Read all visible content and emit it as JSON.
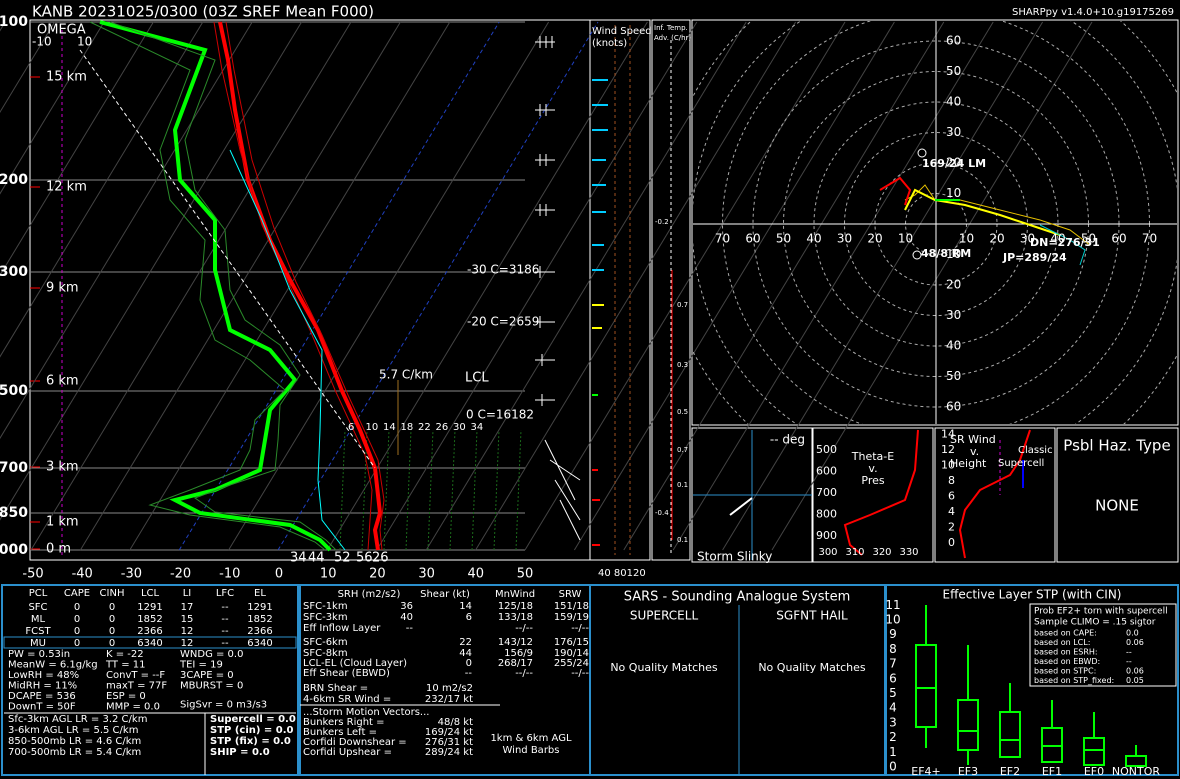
{
  "header": {
    "title": "KANB   20231025/0300  (03Z  SREF Mean  F000)",
    "version": "SHARPpy v1.4.0+10.g19175269"
  },
  "skewt": {
    "pressure_labels": [
      "100",
      "200",
      "300",
      "500",
      "700",
      "850",
      "1000"
    ],
    "height_labels": [
      "15 km",
      "12 km",
      "9 km",
      "6 km",
      "3 km",
      "1 km",
      "0 m"
    ],
    "temp_labels": [
      "-50",
      "-40",
      "-30",
      "-20",
      "-10",
      "0",
      "10",
      "20",
      "30",
      "40",
      "50"
    ],
    "omega": {
      "title": "OMEGA",
      "left": "-10",
      "right": "10"
    },
    "lapse_rate": "5.7 C/km",
    "lcl": "LCL",
    "levels": [
      "-30 C=3186",
      "-20 C=2659",
      "0 C=16182"
    ],
    "mixing_ratios": [
      "6",
      "10",
      "14",
      "18",
      "22",
      "26",
      "30",
      "34"
    ],
    "surface_labels": [
      "34",
      "44",
      "52",
      "56",
      "26"
    ]
  },
  "wind_speed": {
    "title": "Wind Speed",
    "units": "(knots)",
    "ticks": "40 80120"
  },
  "temp_adv": {
    "title": "Inf. Temp.",
    "units": "Adv. (C/hr)",
    "labels": [
      "-0.2",
      "0.7",
      "0.3",
      "0.5",
      "0.7",
      "0.1",
      "-0.4",
      "0.1"
    ]
  },
  "hodograph": {
    "rings": [
      "10",
      "20",
      "30",
      "40",
      "50",
      "60",
      "70"
    ],
    "annotations": [
      "169/24 LM",
      "48/8 RM",
      "DN=276/31",
      "JP=289/24"
    ]
  },
  "slinky": {
    "deg": "-- deg",
    "title": "Storm Slinky"
  },
  "theta_e": {
    "title": [
      "Theta-E",
      "v.",
      "Pres"
    ],
    "y_labels": [
      "500",
      "600",
      "700",
      "800",
      "900"
    ],
    "x_labels": [
      "300",
      "310",
      "320",
      "330"
    ]
  },
  "sr_wind": {
    "title": [
      "SR Wind",
      "v.",
      "Height"
    ],
    "note": [
      "Classic",
      "Supercell"
    ],
    "y_labels": [
      "0",
      "2",
      "4",
      "6",
      "8",
      "10",
      "12",
      "14"
    ]
  },
  "hazard": {
    "title": "Psbl Haz. Type",
    "value": "NONE"
  },
  "parcels": {
    "header": [
      "PCL",
      "CAPE",
      "CINH",
      "LCL",
      "LI",
      "LFC",
      "EL"
    ],
    "rows": [
      [
        "SFC",
        "0",
        "0",
        "1291",
        "17",
        "--",
        "1291"
      ],
      [
        "ML",
        "0",
        "0",
        "1852",
        "15",
        "--",
        "1852"
      ],
      [
        "FCST",
        "0",
        "0",
        "2366",
        "12",
        "--",
        "2366"
      ],
      [
        "MU",
        "0",
        "0",
        "6340",
        "12",
        "--",
        "6340"
      ]
    ]
  },
  "indices": {
    "col1": [
      "PW = 0.53in",
      "MeanW = 6.1g/kg",
      "LowRH = 48%",
      "MidRH = 11%",
      "DCAPE = 536",
      "DownT = 50F"
    ],
    "col2": [
      "K = -22",
      "TT = 11",
      "ConvT = --F",
      "maxT = 77F",
      "ESP = 0",
      "MMP = 0.0"
    ],
    "col3": [
      "WNDG = 0.0",
      "TEI = 19",
      "3CAPE = 0",
      "MBURST = 0"
    ],
    "sigsvr": "SigSvr = 0 m3/s3",
    "lapse": [
      "Sfc-3km AGL LR = 3.2 C/km",
      "3-6km AGL LR = 5.5 C/km",
      "850-500mb LR = 4.6 C/km",
      "700-500mb LR = 5.4 C/km"
    ],
    "composites": [
      "Supercell = 0.0",
      "STP (cin) = 0.0",
      "STP (fix) = 0.0",
      "SHIP = 0.0"
    ]
  },
  "kinematics": {
    "header": [
      "SRH (m2/s2)",
      "Shear (kt)",
      "MnWind",
      "SRW"
    ],
    "rows": [
      {
        "label": "SFC-1km",
        "srh": "36",
        "shear": "14",
        "mnwind": "125/18",
        "srw": "151/18"
      },
      {
        "label": "SFC-3km",
        "srh": "40",
        "shear": "6",
        "mnwind": "133/18",
        "srw": "159/19"
      },
      {
        "label": "Eff Inflow Layer",
        "srh": "--",
        "mnwind": "--/--",
        "srw": "--/--"
      },
      {
        "label": "SFC-6km",
        "shear": "22",
        "mnwind": "143/12",
        "srw": "176/15"
      },
      {
        "label": "SFC-8km",
        "shear": "44",
        "mnwind": "156/9",
        "srw": "190/14"
      },
      {
        "label": "LCL-EL (Cloud Layer)",
        "shear": "0",
        "mnwind": "268/17",
        "srw": "255/24"
      },
      {
        "label": "Eff Shear (EBWD)",
        "shear": "--",
        "mnwind": "--/--",
        "srw": "--/--"
      }
    ],
    "extra": [
      {
        "label": "BRN Shear =",
        "value": "10 m2/s2"
      },
      {
        "label": "4-6km SR Wind =",
        "value": "232/17 kt"
      }
    ],
    "motion_title": "...Storm Motion Vectors...",
    "motion": [
      {
        "label": "Bunkers Right =",
        "value": "48/8 kt"
      },
      {
        "label": "Bunkers Left =",
        "value": "169/24 kt"
      },
      {
        "label": "Corfidi Downshear =",
        "value": "276/31 kt"
      },
      {
        "label": "Corfidi Upshear =",
        "value": "289/24 kt"
      }
    ],
    "barbs_note": [
      "1km & 6km AGL",
      "Wind Barbs"
    ]
  },
  "sars": {
    "title": "SARS - Sounding Analogue System",
    "supercell": "SUPERCELL",
    "hail": "SGFNT HAIL",
    "supercell_result": "No Quality Matches",
    "hail_result": "No Quality Matches"
  },
  "stp": {
    "title": "Effective Layer STP (with CIN)",
    "yticks": [
      "0",
      "1",
      "2",
      "3",
      "4",
      "5",
      "6",
      "7",
      "8",
      "9",
      "10",
      "11"
    ],
    "categories": [
      "EF4+",
      "EF3",
      "EF2",
      "EF1",
      "EF0",
      "NONTOR"
    ],
    "legend": [
      "Prob EF2+ torn with supercell",
      "Sample CLIMO = .15 sigtor"
    ],
    "basis": [
      [
        "based on CAPE:",
        "0.0"
      ],
      [
        "based on LCL:",
        "0.06"
      ],
      [
        "based on ESRH:",
        "--"
      ],
      [
        "based on EBWD:",
        "--"
      ],
      [
        "based on STPC:",
        "0.06"
      ],
      [
        "based on STP_fixed:",
        "0.05"
      ]
    ]
  }
}
